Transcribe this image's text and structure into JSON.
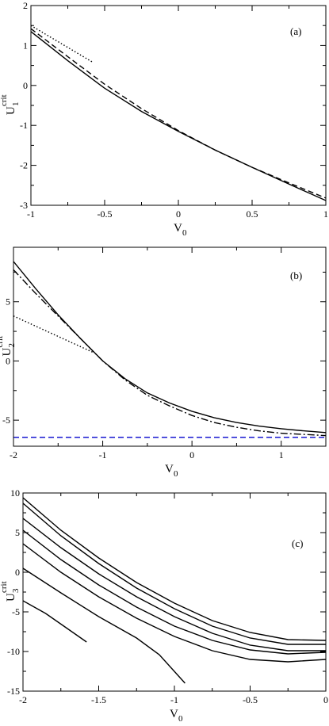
{
  "chart_data": [
    {
      "type": "line",
      "panel_label": "(a)",
      "xlabel": "V",
      "xlabel_sub": "0",
      "ylabel": "U",
      "ylabel_sub": "1",
      "ylabel_sup": "crit",
      "xlim": [
        -1,
        1
      ],
      "ylim": [
        -3,
        2
      ],
      "x_ticks": [
        -1,
        -0.5,
        0,
        0.5,
        1
      ],
      "x_tick_labels": [
        "-1",
        "-0.5",
        "0",
        "0.5",
        "1"
      ],
      "y_ticks": [
        -3,
        -2,
        -1,
        0,
        1,
        2
      ],
      "y_tick_labels": [
        "-3",
        "-2",
        "-1",
        "0",
        "1",
        "2"
      ],
      "grid": false,
      "series": [
        {
          "style": "solid",
          "color": "#000000",
          "x": [
            -1,
            -0.75,
            -0.5,
            -0.25,
            0,
            0.25,
            0.5,
            0.75,
            1
          ],
          "y": [
            1.35,
            0.62,
            -0.07,
            -0.65,
            -1.15,
            -1.62,
            -2.05,
            -2.47,
            -2.88
          ]
        },
        {
          "style": "dashed",
          "color": "#000000",
          "x": [
            -1,
            -0.75,
            -0.5,
            -0.25,
            0,
            0.25,
            0.5,
            0.75,
            1
          ],
          "y": [
            1.42,
            0.72,
            0.03,
            -0.58,
            -1.13,
            -1.62,
            -2.05,
            -2.44,
            -2.82
          ]
        },
        {
          "style": "dotted",
          "color": "#000000",
          "x": [
            -1,
            -0.58
          ],
          "y": [
            1.5,
            0.58
          ]
        }
      ]
    },
    {
      "type": "line",
      "panel_label": "(b)",
      "xlabel": "V",
      "xlabel_sub": "0",
      "ylabel": "U",
      "ylabel_sub": "2",
      "ylabel_sup": "crit",
      "xlim": [
        -2,
        1.5
      ],
      "ylim": [
        -7.2,
        9.6
      ],
      "x_ticks": [
        -2,
        -1,
        0,
        1
      ],
      "x_tick_labels": [
        "-2",
        "-1",
        "0",
        "1"
      ],
      "y_ticks": [
        -5,
        0,
        5
      ],
      "y_tick_labels": [
        "-5",
        "0",
        "5"
      ],
      "grid": false,
      "series": [
        {
          "style": "solid",
          "color": "#000000",
          "x": [
            -2,
            -1.75,
            -1.5,
            -1.25,
            -1,
            -0.75,
            -0.5,
            -0.25,
            0,
            0.25,
            0.5,
            0.75,
            1,
            1.25,
            1.5
          ],
          "y": [
            8.4,
            6.1,
            3.9,
            1.9,
            0.0,
            -1.5,
            -2.7,
            -3.55,
            -4.25,
            -4.8,
            -5.2,
            -5.5,
            -5.72,
            -5.9,
            -6.05
          ]
        },
        {
          "style": "dashdot",
          "color": "#000000",
          "x": [
            -2,
            -1.75,
            -1.5,
            -1.25,
            -1,
            -0.75,
            -0.5,
            -0.25,
            0,
            0.25,
            0.5,
            0.75,
            1,
            1.25,
            1.5
          ],
          "y": [
            7.7,
            5.7,
            3.8,
            1.9,
            0.0,
            -1.6,
            -2.9,
            -3.8,
            -4.6,
            -5.2,
            -5.6,
            -5.9,
            -6.1,
            -6.2,
            -6.3
          ]
        },
        {
          "style": "dotted",
          "color": "#000000",
          "x": [
            -2,
            -1.1
          ],
          "y": [
            3.8,
            0.7
          ]
        },
        {
          "style": "dashed",
          "color": "#0000cc",
          "x": [
            -2,
            1.5
          ],
          "y": [
            -6.45,
            -6.45
          ]
        }
      ]
    },
    {
      "type": "line",
      "panel_label": "(c)",
      "xlabel": "V",
      "xlabel_sub": "0",
      "ylabel": "U",
      "ylabel_sub": "3",
      "ylabel_sup": "crit",
      "xlim": [
        -2,
        0
      ],
      "ylim": [
        -15,
        10
      ],
      "x_ticks": [
        -2,
        -1.5,
        -1,
        -0.5,
        0
      ],
      "x_tick_labels": [
        "-2",
        "-1.5",
        "-1",
        "-0.5",
        "0"
      ],
      "y_ticks": [
        -15,
        -10,
        -5,
        0,
        5,
        10
      ],
      "y_tick_labels": [
        "-15",
        "-10",
        "-5",
        "0",
        "5",
        "10"
      ],
      "grid": false,
      "series": [
        {
          "style": "solid",
          "color": "#000000",
          "x": [
            -2,
            -1.75,
            -1.5,
            -1.25,
            -1,
            -0.75,
            -0.5,
            -0.25,
            0
          ],
          "y": [
            9.4,
            5.3,
            1.8,
            -1.3,
            -3.9,
            -6.1,
            -7.6,
            -8.5,
            -8.6
          ]
        },
        {
          "style": "solid",
          "color": "#000000",
          "x": [
            -2,
            -1.75,
            -1.5,
            -1.25,
            -1,
            -0.75,
            -0.5,
            -0.25,
            0
          ],
          "y": [
            8.7,
            4.6,
            1.1,
            -2.0,
            -4.6,
            -6.8,
            -8.3,
            -9.1,
            -9.1
          ]
        },
        {
          "style": "solid",
          "color": "#000000",
          "x": [
            -2,
            -1.75,
            -1.5,
            -1.25,
            -1,
            -0.75,
            -0.5,
            -0.25,
            0
          ],
          "y": [
            6.8,
            3.1,
            -0.2,
            -3.1,
            -5.6,
            -7.7,
            -9.2,
            -9.9,
            -9.9
          ]
        },
        {
          "style": "solid",
          "color": "#000000",
          "x": [
            -2,
            -1.75,
            -1.5,
            -1.25,
            -1,
            -0.75,
            -0.5,
            -0.25,
            0
          ],
          "y": [
            5.3,
            1.6,
            -1.6,
            -4.4,
            -6.8,
            -8.6,
            -9.8,
            -10.3,
            -10.1
          ]
        },
        {
          "style": "solid",
          "color": "#000000",
          "x": [
            -2,
            -1.75,
            -1.5,
            -1.25,
            -1,
            -0.75,
            -0.5,
            -0.25,
            0
          ],
          "y": [
            3.6,
            0.0,
            -3.1,
            -5.8,
            -8.1,
            -9.9,
            -11.0,
            -11.3,
            -11.0
          ]
        },
        {
          "style": "solid",
          "color": "#000000",
          "x": [
            -2,
            -1.75,
            -1.5,
            -1.25,
            -1.1,
            -0.93
          ],
          "y": [
            0.5,
            -2.6,
            -5.6,
            -8.3,
            -10.4,
            -14.0
          ]
        },
        {
          "style": "solid",
          "color": "#000000",
          "x": [
            -2,
            -1.85,
            -1.7,
            -1.58
          ],
          "y": [
            -3.6,
            -5.2,
            -7.2,
            -8.8
          ]
        }
      ]
    }
  ]
}
